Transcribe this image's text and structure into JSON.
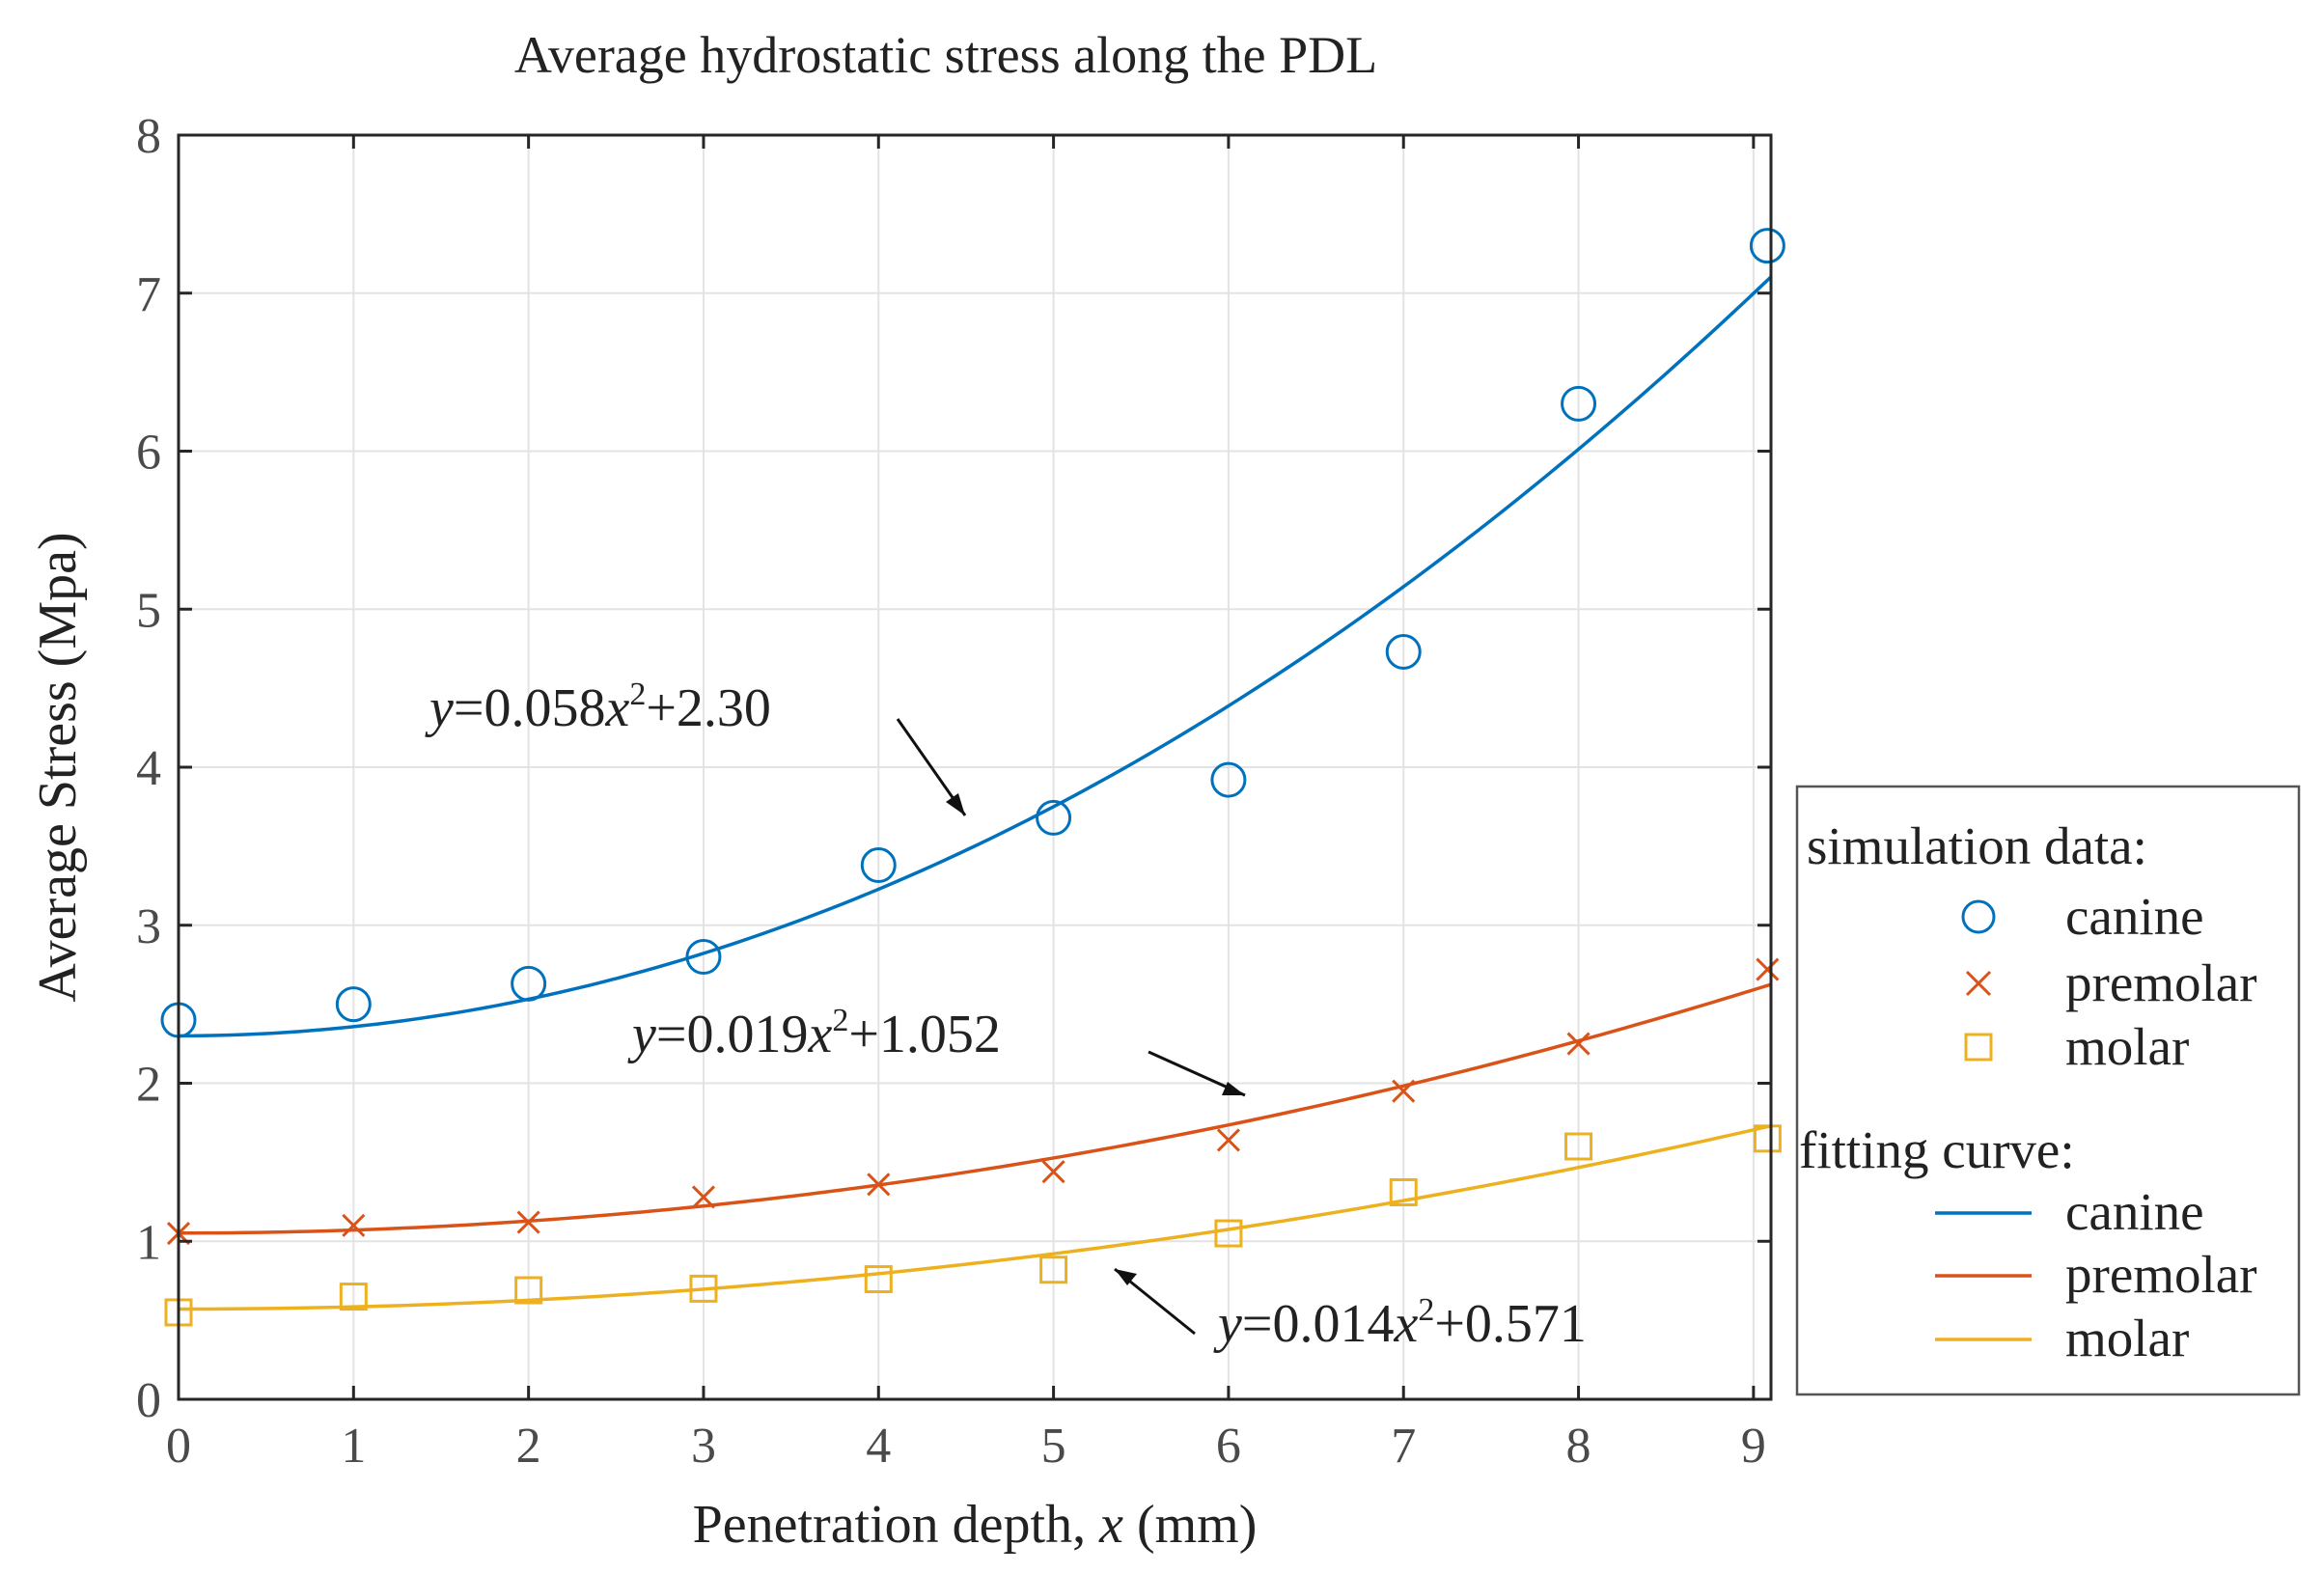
{
  "chart_data": {
    "type": "scatter",
    "title": "Average hydrostatic stress along the PDL",
    "xlabel_prefix": "Penetration depth, ",
    "xlabel_var": "x",
    "xlabel_suffix": " (mm)",
    "ylabel": "Average Stress (Mpa)",
    "xlim": [
      0,
      9.1
    ],
    "ylim": [
      0,
      8
    ],
    "xticks": [
      "0",
      "1",
      "2",
      "3",
      "4",
      "5",
      "6",
      "7",
      "8",
      "9"
    ],
    "yticks": [
      "0",
      "1",
      "2",
      "3",
      "4",
      "5",
      "6",
      "7",
      "8"
    ],
    "grid": true,
    "series": [
      {
        "name": "canine",
        "color": "#0072BD",
        "marker": "circle",
        "x": [
          0,
          1,
          2,
          3,
          4,
          5,
          6,
          7,
          8,
          9.08
        ],
        "values": [
          2.4,
          2.5,
          2.63,
          2.8,
          3.38,
          3.68,
          3.92,
          4.73,
          6.3,
          7.3
        ],
        "fit": {
          "a": 0.058,
          "b": 2.3
        }
      },
      {
        "name": "premolar",
        "color": "#D95319",
        "marker": "cross",
        "x": [
          0,
          1,
          2,
          3,
          4,
          5,
          6,
          7,
          8,
          9.08
        ],
        "values": [
          1.05,
          1.1,
          1.12,
          1.28,
          1.36,
          1.44,
          1.64,
          1.95,
          2.25,
          2.72
        ],
        "fit": {
          "a": 0.019,
          "b": 1.052
        }
      },
      {
        "name": "molar",
        "color": "#EDB120",
        "marker": "square",
        "x": [
          0,
          1,
          2,
          3,
          4,
          5,
          6,
          7,
          8,
          9.08
        ],
        "values": [
          0.55,
          0.65,
          0.69,
          0.7,
          0.76,
          0.82,
          1.05,
          1.31,
          1.6,
          1.65
        ],
        "fit": {
          "a": 0.014,
          "b": 0.571
        }
      }
    ],
    "annotations": [
      {
        "series": "canine",
        "prefix": "=0.058",
        "var": "x",
        "suffix": "+2.30"
      },
      {
        "series": "premolar",
        "prefix": "=0.019",
        "var": "x",
        "suffix": "+1.052"
      },
      {
        "series": "molar",
        "prefix": "=0.014",
        "var": "x",
        "suffix": "+0.571"
      }
    ],
    "equation_lhs": "y",
    "equation_exponent": "2",
    "legend": {
      "position": "right",
      "data_header": "simulation data:",
      "fit_header": "fitting curve:",
      "labels": [
        "canine",
        "premolar",
        "molar"
      ]
    }
  }
}
